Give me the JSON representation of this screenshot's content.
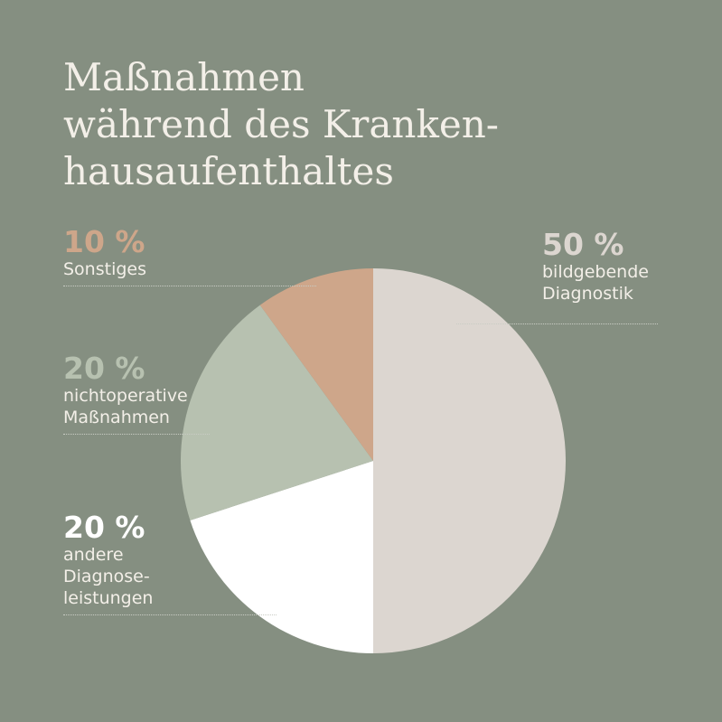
{
  "title": [
    "Maßnahmen",
    "während des Kranken-",
    "hausaufenthaltes"
  ],
  "colors": {
    "background": "#858f81",
    "text": "#f3efe8",
    "slice_imaging": "#dcd6d0",
    "slice_other_diag": "#ffffff",
    "slice_nonop": "#b7c1b0",
    "slice_other": "#cea68a"
  },
  "chart_data": {
    "type": "pie",
    "title": "Maßnahmen während des Krankenhausaufenthaltes",
    "unit": "%",
    "slices": [
      {
        "pct_label": "50 %",
        "lines": [
          "bildgebende",
          "Diagnostik"
        ],
        "value": 50,
        "color": "#dcd6d0"
      },
      {
        "pct_label": "20 %",
        "lines": [
          "andere",
          "Diagnose-",
          "leistungen"
        ],
        "value": 20,
        "color": "#ffffff"
      },
      {
        "pct_label": "20 %",
        "lines": [
          "nichtoperative",
          "Maßnahmen"
        ],
        "value": 20,
        "color": "#b7c1b0"
      },
      {
        "pct_label": "10 %",
        "lines": [
          "Sonstiges"
        ],
        "value": 10,
        "color": "#cea68a"
      }
    ]
  }
}
